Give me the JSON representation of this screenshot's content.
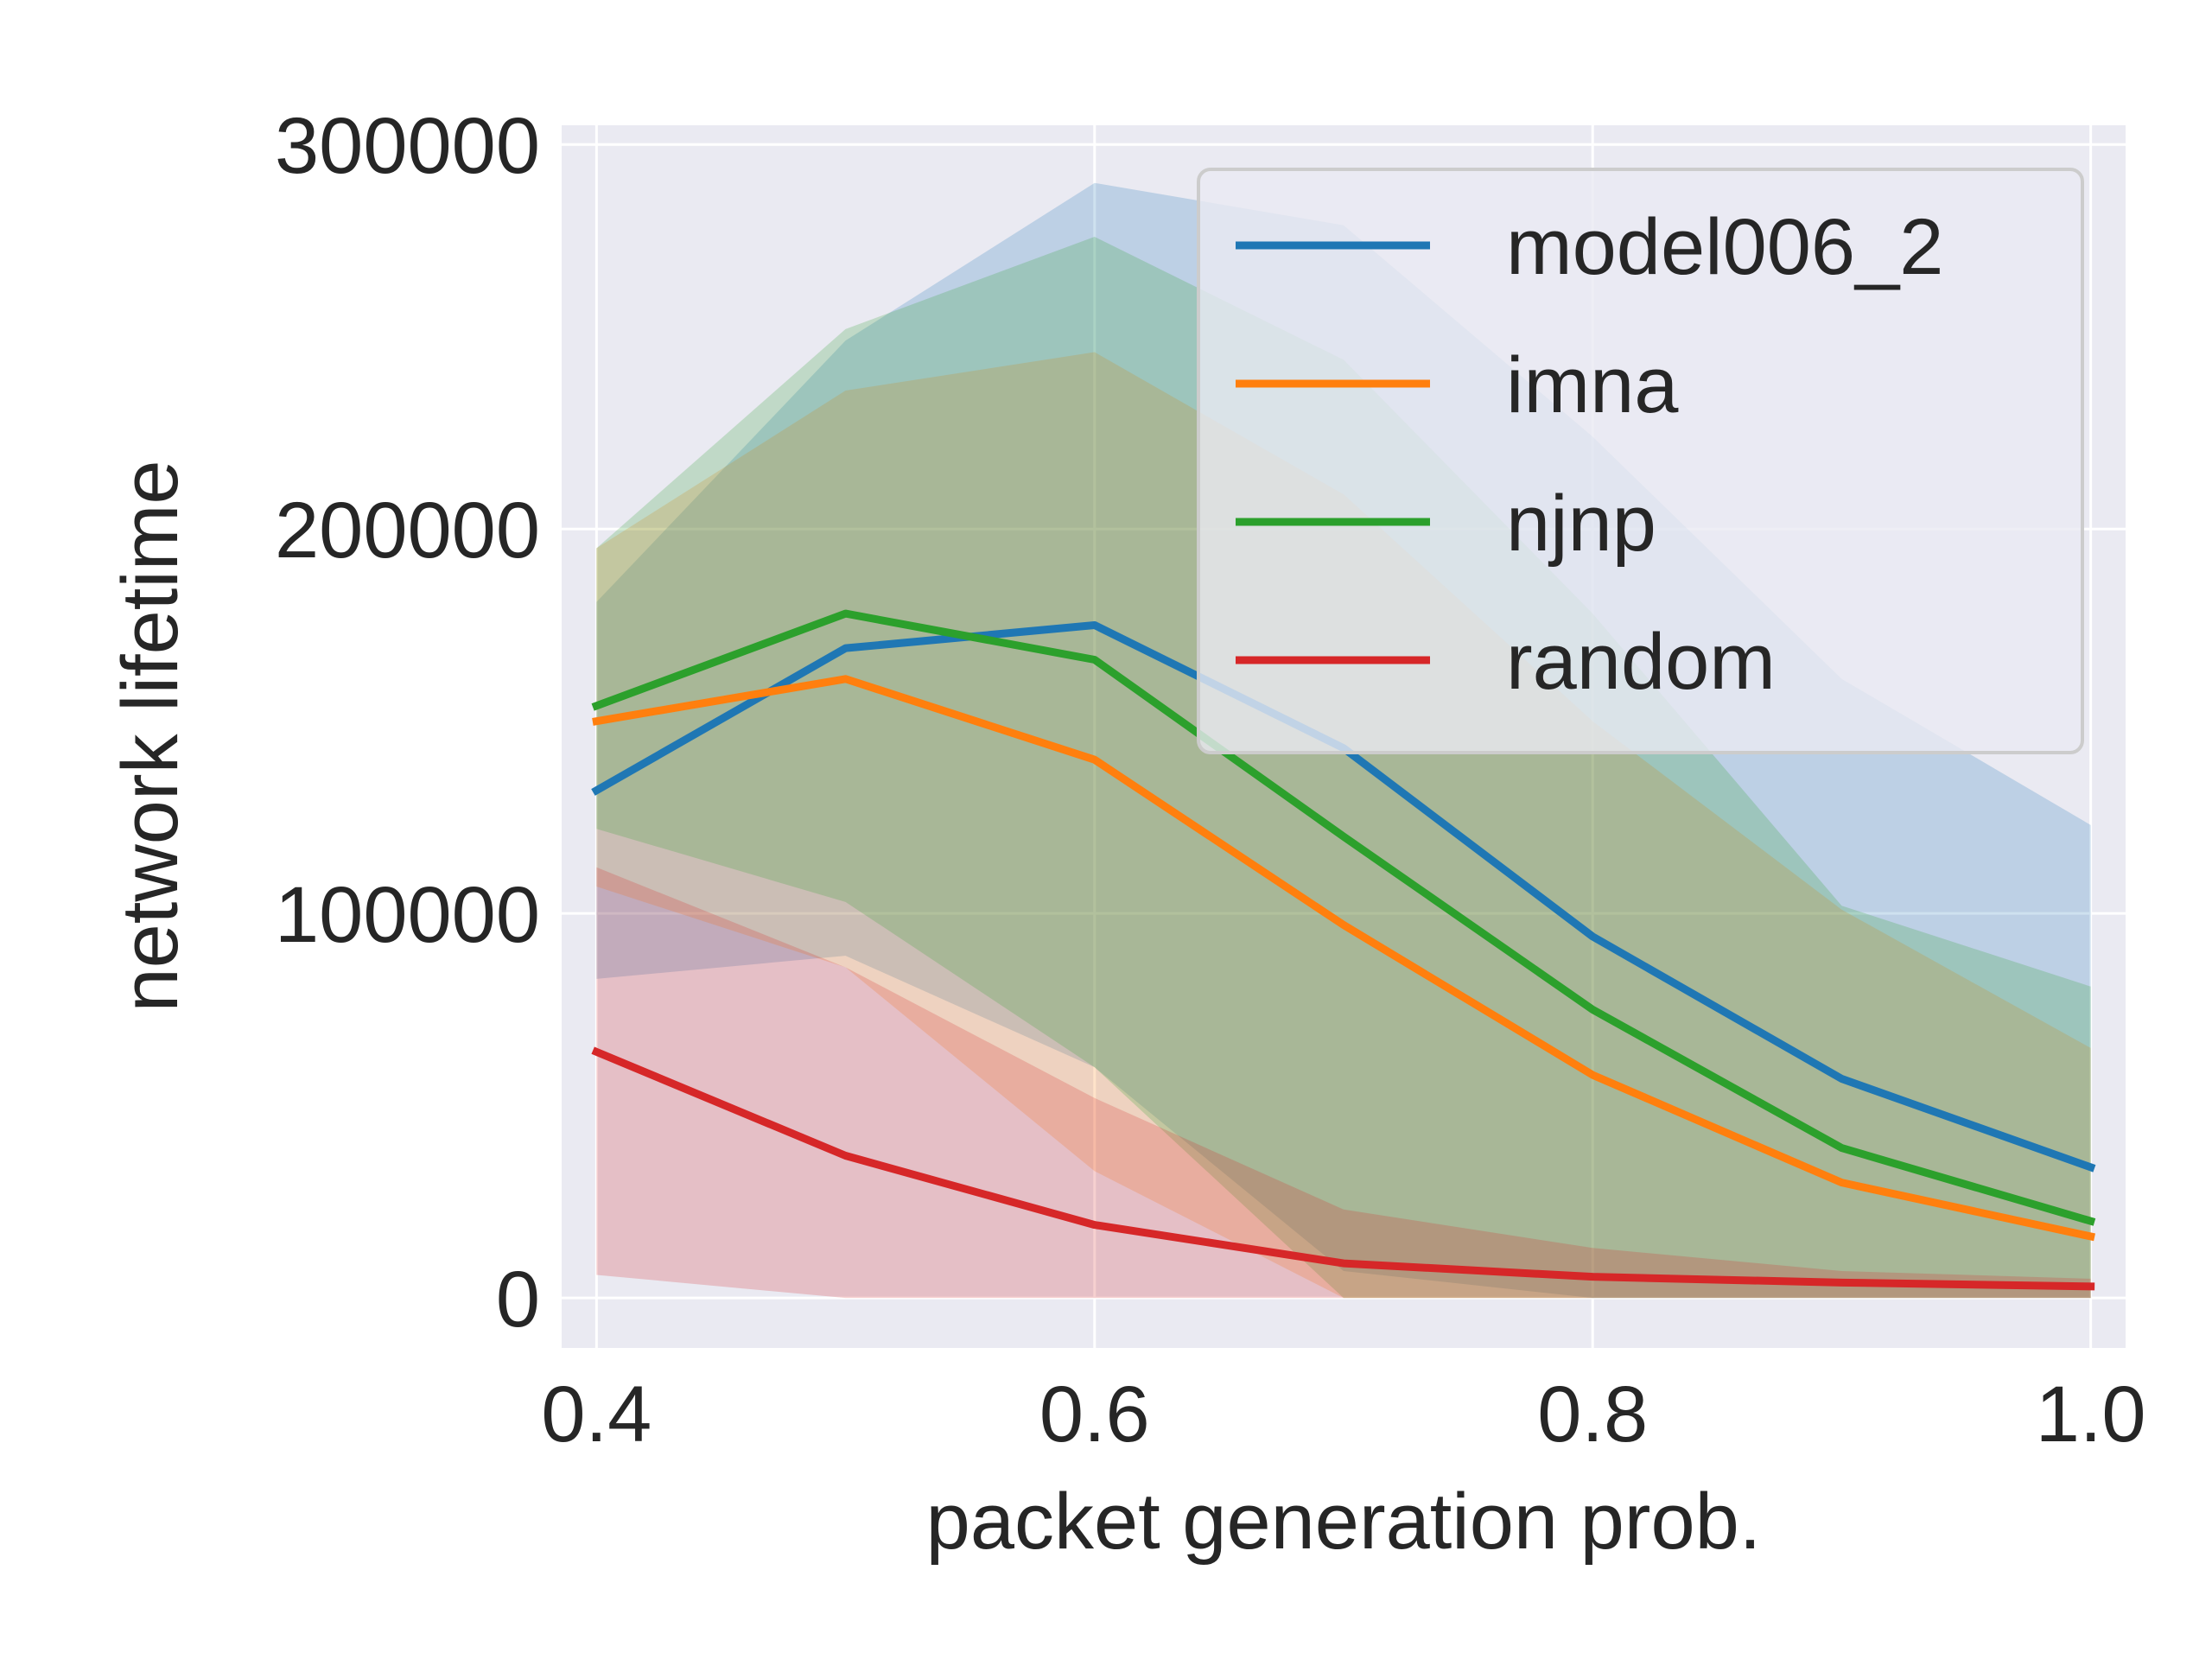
{
  "chart_data": {
    "type": "line",
    "xlabel": "packet generation prob.",
    "ylabel": "network lifetime",
    "xlim": [
      0.386,
      1.014
    ],
    "ylim": [
      -13000,
      305000
    ],
    "x_ticks": [
      0.4,
      0.6,
      0.8,
      1.0
    ],
    "x_tick_labels": [
      "0.4",
      "0.6",
      "0.8",
      "1.0"
    ],
    "y_ticks": [
      0,
      100000,
      200000,
      300000
    ],
    "y_tick_labels": [
      "0",
      "100000",
      "200000",
      "300000"
    ],
    "grid": true,
    "legend_position": "top-right",
    "x": [
      0.4,
      0.5,
      0.6,
      0.7,
      0.8,
      0.9,
      1.0
    ],
    "series": [
      {
        "name": "model006_2",
        "color": "#1f77b4",
        "values": [
          132000,
          169000,
          175000,
          143000,
          94000,
          57000,
          34000
        ],
        "band_upper": [
          181000,
          249000,
          290000,
          279000,
          224000,
          161000,
          123000
        ],
        "band_lower": [
          83000,
          89000,
          60000,
          7000,
          0,
          0,
          0
        ]
      },
      {
        "name": "imna",
        "color": "#ff7f0e",
        "values": [
          150000,
          161000,
          140000,
          97000,
          58000,
          30000,
          16000
        ],
        "band_upper": [
          195000,
          236000,
          246000,
          209000,
          150000,
          101000,
          65000
        ],
        "band_lower": [
          107000,
          86000,
          33000,
          0,
          0,
          0,
          0
        ]
      },
      {
        "name": "njnp",
        "color": "#2ca02c",
        "values": [
          154000,
          178000,
          166000,
          120000,
          75000,
          39000,
          20000
        ],
        "band_upper": [
          195000,
          252000,
          276000,
          244000,
          178000,
          102000,
          81000
        ],
        "band_lower": [
          122000,
          103000,
          60000,
          0,
          0,
          0,
          0
        ]
      },
      {
        "name": "random",
        "color": "#d62728",
        "values": [
          64000,
          37000,
          19000,
          9000,
          5500,
          4000,
          3000
        ],
        "band_upper": [
          112000,
          86000,
          52000,
          23000,
          13000,
          7000,
          5000
        ],
        "band_lower": [
          6000,
          0,
          0,
          0,
          0,
          0,
          0
        ]
      }
    ]
  }
}
